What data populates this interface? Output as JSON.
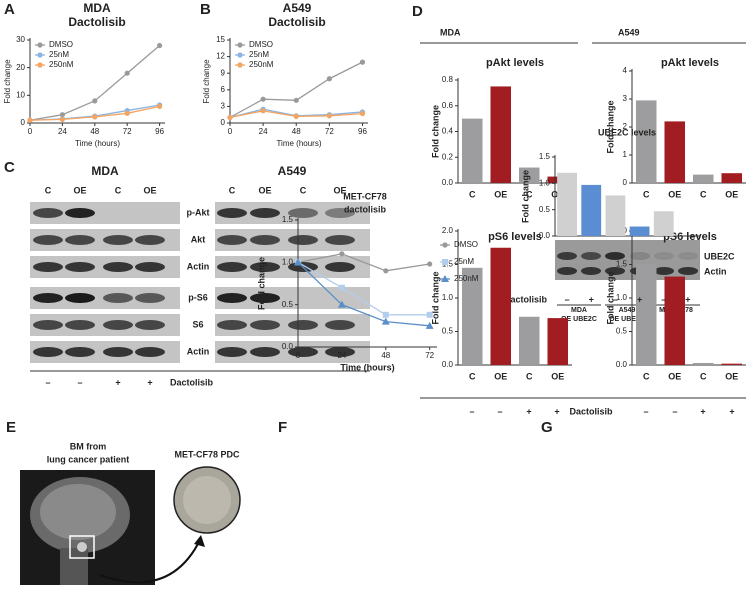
{
  "chart_data": [
    {
      "type": "line",
      "panel": "A",
      "title": "MDA",
      "subtitle": "Dactolisib",
      "xlabel": "Time (hours)",
      "ylabel": "Fold change",
      "x": [
        0,
        24,
        48,
        72,
        96
      ],
      "xlim": [
        0,
        100
      ],
      "xticks": [
        0,
        24,
        48,
        72,
        96
      ],
      "ylim": [
        0,
        30
      ],
      "yticks": [
        0,
        10,
        20,
        30
      ],
      "series": [
        {
          "name": "DMSO",
          "color": "#9a9a9a",
          "marker": "circle",
          "values": [
            1,
            3,
            8,
            18,
            28
          ]
        },
        {
          "name": "25nM",
          "color": "#8ab4e0",
          "marker": "circle",
          "values": [
            1,
            1.5,
            2.5,
            4.5,
            6.5
          ]
        },
        {
          "name": "250nM",
          "color": "#f4a460",
          "marker": "circle",
          "values": [
            1,
            1.3,
            2.2,
            3.5,
            6
          ]
        }
      ]
    },
    {
      "type": "line",
      "panel": "B",
      "title": "A549",
      "subtitle": "Dactolisib",
      "xlabel": "Time (hours)",
      "ylabel": "Fold change",
      "x": [
        0,
        24,
        48,
        72,
        96
      ],
      "xlim": [
        0,
        100
      ],
      "xticks": [
        0,
        24,
        48,
        72,
        96
      ],
      "ylim": [
        0,
        15
      ],
      "yticks": [
        0,
        3,
        6,
        9,
        12,
        15
      ],
      "series": [
        {
          "name": "DMSO",
          "color": "#9a9a9a",
          "marker": "circle",
          "values": [
            1,
            4.3,
            4.1,
            8,
            11
          ]
        },
        {
          "name": "25nM",
          "color": "#8ab4e0",
          "marker": "circle",
          "values": [
            1,
            2.5,
            1.3,
            1.5,
            2
          ]
        },
        {
          "name": "250nM",
          "color": "#f4a460",
          "marker": "circle",
          "values": [
            1,
            2.2,
            1.2,
            1.3,
            1.7
          ]
        }
      ]
    },
    {
      "type": "bar",
      "title": "pAkt levels",
      "ylabel": "Fold change",
      "categories": [
        "C",
        "OE",
        "C",
        "OE"
      ],
      "values": [
        0.5,
        0.75,
        0.12,
        0.05
      ],
      "colors": [
        "#9d9d9f",
        "#a11d21",
        "#9d9d9f",
        "#a11d21"
      ],
      "ylim": [
        0,
        0.8
      ],
      "yticks": [
        {
          "value": 0,
          "label": "0.0"
        },
        0.2,
        0.4,
        0.6,
        0.8
      ]
    },
    {
      "type": "bar",
      "title": "pAkt levels",
      "ylabel": "Fold change",
      "categories": [
        "C",
        "OE",
        "C",
        "OE"
      ],
      "values": [
        2.95,
        2.2,
        0.3,
        0.35
      ],
      "colors": [
        "#9d9d9f",
        "#a11d21",
        "#9d9d9f",
        "#a11d21"
      ],
      "ylim": [
        0,
        4
      ],
      "yticks": [
        0,
        1,
        2,
        3,
        4
      ]
    },
    {
      "type": "bar",
      "title": "pS6 levels",
      "ylabel": "Fold change",
      "categories": [
        "C",
        "OE",
        "C",
        "OE"
      ],
      "values": [
        1.45,
        1.75,
        0.72,
        0.7
      ],
      "colors": [
        "#9d9d9f",
        "#a11d21",
        "#9d9d9f",
        "#a11d21"
      ],
      "ylim": [
        0,
        2
      ],
      "yticks": [
        {
          "value": 0,
          "label": "0.0"
        },
        0.5,
        {
          "value": 1,
          "label": "1.0"
        },
        1.5,
        {
          "value": 2,
          "label": "2.0"
        }
      ]
    },
    {
      "type": "bar",
      "title": "pS6 levels",
      "ylabel": "Fold change",
      "categories": [
        "C",
        "OE",
        "C",
        "OE"
      ],
      "values": [
        1.5,
        1.32,
        0.03,
        0.02
      ],
      "colors": [
        "#9d9d9f",
        "#a11d21",
        "#9d9d9f",
        "#a11d21"
      ],
      "ylim": [
        0,
        2
      ],
      "yticks": [
        {
          "value": 0,
          "label": "0.0"
        },
        0.5,
        {
          "value": 1,
          "label": "1.0"
        },
        1.5,
        {
          "value": 2,
          "label": "2.0"
        }
      ]
    },
    {
      "type": "line",
      "panel": "F",
      "title": "MET-CF78",
      "subtitle": "dactolisib",
      "xlabel": "Time (hours)",
      "ylabel": "Fold change",
      "x": [
        0,
        24,
        48,
        72
      ],
      "xlim": [
        0,
        76
      ],
      "xticks": [
        0,
        24,
        48,
        72
      ],
      "ylim": [
        0,
        1.5
      ],
      "yticks": [
        {
          "value": 0,
          "label": "0.0"
        },
        0.5,
        {
          "value": 1,
          "label": "1.0"
        },
        1.5
      ],
      "series": [
        {
          "name": "DMSO",
          "color": "#999999",
          "marker": "circle",
          "values": [
            1,
            1.1,
            0.9,
            0.98
          ]
        },
        {
          "name": "25nM",
          "color": "#b3cdec",
          "marker": "square",
          "values": [
            1,
            0.7,
            0.38,
            0.38
          ]
        },
        {
          "name": "250nM",
          "color": "#5b8fc9",
          "marker": "triangle",
          "values": [
            1,
            0.5,
            0.3,
            0.25
          ]
        }
      ]
    },
    {
      "type": "bar",
      "panel": "G",
      "title": "UBE2C levels",
      "ylabel": "Fold change",
      "categories": [
        "–",
        "+",
        "–",
        "+",
        "–",
        "+"
      ],
      "values": [
        1.2,
        0.97,
        0.77,
        0.18,
        0.47,
        0
      ],
      "colors": [
        "#d0d0d0",
        "#5b8dd3",
        "#d0d0d0",
        "#5b8dd3",
        "#d0d0d0",
        "#5b8dd3"
      ],
      "ylim": [
        0,
        1.5
      ],
      "yticks": [
        {
          "value": 0,
          "label": "0.0"
        },
        0.5,
        {
          "value": 1,
          "label": "1.0"
        },
        1.5
      ]
    }
  ],
  "panel_c": {
    "panel": "C",
    "blots": [
      {
        "title": "MDA",
        "lanes": [
          "C",
          "OE",
          "C",
          "OE"
        ]
      },
      {
        "title": "A549",
        "lanes": [
          "C",
          "OE",
          "C",
          "OE"
        ]
      }
    ],
    "rows": [
      "p-Akt",
      "Akt",
      "Actin",
      "p-S6",
      "S6",
      "Actin"
    ],
    "treatment": [
      "–",
      "–",
      "+",
      "+"
    ],
    "treatment_label": "Dactolisib"
  },
  "panel_d": {
    "panel": "D",
    "groups": [
      "MDA",
      "A549"
    ],
    "treatment": [
      "–",
      "–",
      "+",
      "+",
      "–",
      "–",
      "+",
      "+"
    ],
    "treatment_label": "Dactolisib"
  },
  "panel_e": {
    "panel": "E",
    "source": [
      "BM from",
      "lung cancer patient"
    ],
    "model": "MET-CF78 PDC"
  },
  "panel_g": {
    "rows": [
      "UBE2C",
      "Actin"
    ],
    "treatment_label": "Dactolisib",
    "groups": [
      [
        "MDA",
        "OE UBE2C"
      ],
      [
        "A549",
        "OE UBE2C"
      ],
      [
        "MET-CF78"
      ]
    ]
  }
}
